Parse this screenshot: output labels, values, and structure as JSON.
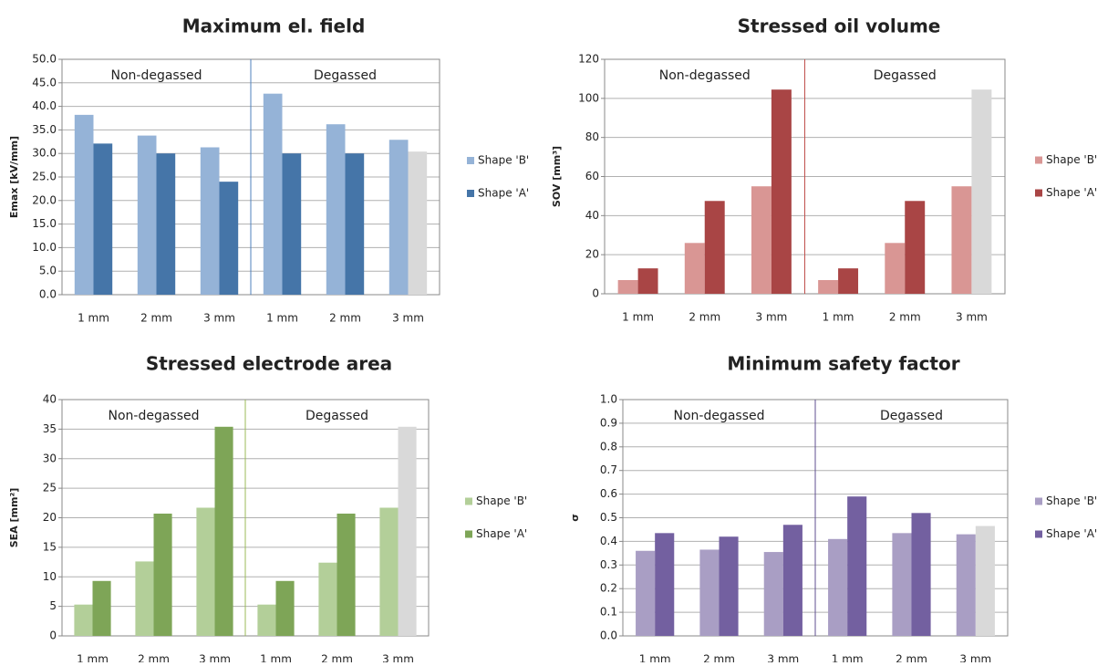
{
  "chart_data": [
    {
      "type": "bar",
      "title": "Maximum el. field",
      "y_label": "Emax [kV/mm]",
      "categories": [
        "1 mm",
        "2 mm",
        "3 mm",
        "1 mm",
        "2 mm",
        "3 mm"
      ],
      "groups": [
        "Non-degassed",
        "Degassed"
      ],
      "divider_color": "#4f81bd",
      "series": [
        {
          "name": "Shape 'B'",
          "color": "#95b3d7",
          "values": [
            38.2,
            33.8,
            31.3,
            42.7,
            36.2,
            32.9
          ]
        },
        {
          "name": "Shape 'A'",
          "color": "#4575a8",
          "colors": [
            "#4575a8",
            "#4575a8",
            "#4575a8",
            "#4575a8",
            "#4575a8",
            "#d9d9d9"
          ],
          "values": [
            32.1,
            30.0,
            24.0,
            30.0,
            30.0,
            30.4
          ]
        }
      ],
      "ylim": [
        0,
        50
      ],
      "yticks": [
        {
          "value": 0,
          "label": "0.0"
        },
        {
          "value": 5,
          "label": "5.0"
        },
        {
          "value": 10,
          "label": "10.0"
        },
        {
          "value": 15,
          "label": "15.0"
        },
        {
          "value": 20,
          "label": "20.0"
        },
        {
          "value": 25,
          "label": "25.0"
        },
        {
          "value": 30,
          "label": "30.0"
        },
        {
          "value": 35,
          "label": "35.0"
        },
        {
          "value": 40,
          "label": "40.0"
        },
        {
          "value": 45,
          "label": "45.0"
        },
        {
          "value": 50,
          "label": "50.0"
        }
      ],
      "grid": true
    },
    {
      "type": "bar",
      "title": "Stressed oil volume",
      "y_label": "SOV [mm³]",
      "categories": [
        "1 mm",
        "2 mm",
        "3 mm",
        "1 mm",
        "2 mm",
        "3 mm"
      ],
      "groups": [
        "Non-degassed",
        "Degassed"
      ],
      "divider_color": "#c0504d",
      "series": [
        {
          "name": "Shape 'B'",
          "color": "#d99694",
          "values": [
            7,
            26,
            55,
            7,
            26,
            55
          ]
        },
        {
          "name": "Shape 'A'",
          "color": "#a94545",
          "colors": [
            "#a94545",
            "#a94545",
            "#a94545",
            "#a94545",
            "#a94545",
            "#d9d9d9"
          ],
          "values": [
            13,
            47.5,
            104.5,
            13,
            47.5,
            104.5
          ]
        }
      ],
      "ylim": [
        0,
        120
      ],
      "yticks": [
        0,
        20,
        40,
        60,
        80,
        100,
        120
      ],
      "grid": true
    },
    {
      "type": "bar",
      "title": "Stressed electrode area",
      "y_label": "SEA [mm²]",
      "categories": [
        "1 mm",
        "2 mm",
        "3 mm",
        "1 mm",
        "2 mm",
        "3 mm"
      ],
      "groups": [
        "Non-degassed",
        "Degassed"
      ],
      "divider_color": "#9bbb59",
      "series": [
        {
          "name": "Shape 'B'",
          "color": "#b3cf99",
          "values": [
            5.3,
            12.6,
            21.7,
            5.3,
            12.4,
            21.7
          ]
        },
        {
          "name": "Shape 'A'",
          "color": "#7ea557",
          "colors": [
            "#7ea557",
            "#7ea557",
            "#7ea557",
            "#7ea557",
            "#7ea557",
            "#d9d9d9"
          ],
          "values": [
            9.3,
            20.7,
            35.4,
            9.3,
            20.7,
            35.4
          ]
        }
      ],
      "ylim": [
        0,
        40
      ],
      "yticks": [
        0,
        5,
        10,
        15,
        20,
        25,
        30,
        35,
        40
      ],
      "grid": true
    },
    {
      "type": "bar",
      "title": "Minimum safety factor",
      "y_label": "σ",
      "categories": [
        "1 mm",
        "2 mm",
        "3 mm",
        "1 mm",
        "2 mm",
        "3 mm"
      ],
      "groups": [
        "Non-degassed",
        "Degassed"
      ],
      "divider_color": "#5f4f91",
      "series": [
        {
          "name": "Shape 'B'",
          "color": "#a99ec4",
          "values": [
            0.36,
            0.365,
            0.355,
            0.41,
            0.435,
            0.43
          ]
        },
        {
          "name": "Shape 'A'",
          "color": "#7360a0",
          "colors": [
            "#7360a0",
            "#7360a0",
            "#7360a0",
            "#7360a0",
            "#7360a0",
            "#d9d9d9"
          ],
          "values": [
            0.435,
            0.42,
            0.47,
            0.59,
            0.52,
            0.465
          ]
        }
      ],
      "ylim": [
        0,
        1
      ],
      "yticks": [
        {
          "value": 0,
          "label": "0.0"
        },
        0.1,
        0.2,
        0.3,
        0.4,
        0.5,
        0.6,
        0.7,
        0.8,
        0.9,
        {
          "value": 1,
          "label": "1.0"
        }
      ],
      "grid": true
    }
  ]
}
